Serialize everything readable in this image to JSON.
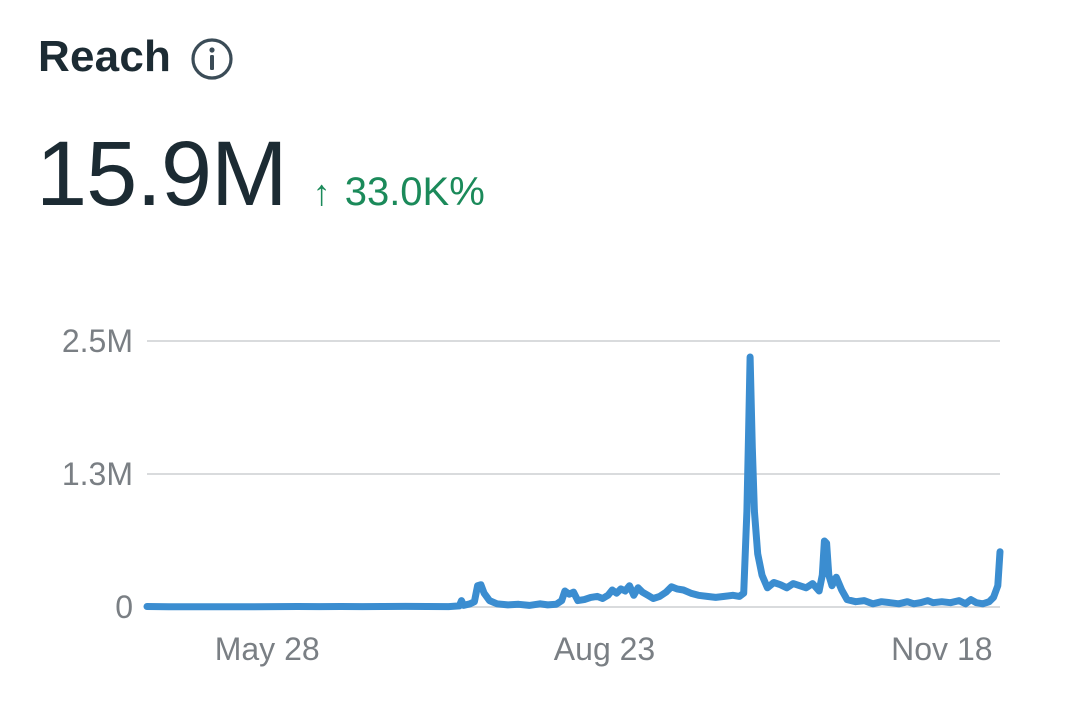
{
  "header": {
    "title": "Reach",
    "info_icon": "info-circle-icon"
  },
  "metric": {
    "value": "15.9M",
    "delta_arrow": "↑",
    "delta_text": "33.0K%",
    "delta_color": "#1b8a5a"
  },
  "colors": {
    "line": "#3b8dd0",
    "grid": "#d9dbdd",
    "text": "#1c2b33",
    "tick": "#7a7f84"
  },
  "chart_data": {
    "type": "line",
    "title": "",
    "xlabel": "",
    "ylabel": "",
    "ylim": [
      0,
      2500000
    ],
    "y_ticks": [
      {
        "label": "0",
        "value": 0
      },
      {
        "label": "1.3M",
        "value": 1250000
      },
      {
        "label": "2.5M",
        "value": 2500000
      }
    ],
    "x_ticks": [
      {
        "label": "May 28",
        "x": 31
      },
      {
        "label": "Aug 23",
        "x": 118
      },
      {
        "label": "Nov 18",
        "x": 205
      }
    ],
    "grid": true,
    "legend": "none",
    "series": [
      {
        "values": [
          [
            0,
            5000
          ],
          [
            20,
            3000
          ],
          [
            40,
            2000
          ],
          [
            60,
            3000
          ],
          [
            80,
            2000
          ],
          [
            100,
            3000
          ],
          [
            120,
            4000
          ],
          [
            140,
            5000
          ],
          [
            160,
            4000
          ],
          [
            180,
            5000
          ],
          [
            200,
            4000
          ],
          [
            220,
            5000
          ],
          [
            240,
            6000
          ],
          [
            260,
            5000
          ],
          [
            280,
            4000
          ],
          [
            290,
            10000
          ],
          [
            292,
            60000
          ],
          [
            294,
            15000
          ],
          [
            300,
            30000
          ],
          [
            304,
            50000
          ],
          [
            307,
            200000
          ],
          [
            310,
            210000
          ],
          [
            313,
            130000
          ],
          [
            318,
            60000
          ],
          [
            325,
            30000
          ],
          [
            335,
            20000
          ],
          [
            345,
            25000
          ],
          [
            355,
            15000
          ],
          [
            365,
            30000
          ],
          [
            372,
            20000
          ],
          [
            380,
            25000
          ],
          [
            385,
            60000
          ],
          [
            388,
            150000
          ],
          [
            392,
            120000
          ],
          [
            396,
            140000
          ],
          [
            400,
            60000
          ],
          [
            406,
            70000
          ],
          [
            412,
            90000
          ],
          [
            418,
            100000
          ],
          [
            423,
            80000
          ],
          [
            428,
            110000
          ],
          [
            432,
            160000
          ],
          [
            436,
            130000
          ],
          [
            440,
            170000
          ],
          [
            444,
            150000
          ],
          [
            448,
            200000
          ],
          [
            452,
            110000
          ],
          [
            456,
            180000
          ],
          [
            460,
            140000
          ],
          [
            465,
            110000
          ],
          [
            470,
            80000
          ],
          [
            476,
            100000
          ],
          [
            482,
            140000
          ],
          [
            487,
            190000
          ],
          [
            492,
            170000
          ],
          [
            498,
            160000
          ],
          [
            505,
            130000
          ],
          [
            512,
            110000
          ],
          [
            520,
            100000
          ],
          [
            528,
            90000
          ],
          [
            536,
            100000
          ],
          [
            544,
            110000
          ],
          [
            550,
            100000
          ],
          [
            554,
            130000
          ],
          [
            557,
            900000
          ],
          [
            558.5,
            1600000
          ],
          [
            560,
            2350000
          ],
          [
            562,
            1500000
          ],
          [
            564,
            900000
          ],
          [
            567,
            500000
          ],
          [
            571,
            300000
          ],
          [
            576,
            180000
          ],
          [
            582,
            230000
          ],
          [
            588,
            210000
          ],
          [
            594,
            180000
          ],
          [
            600,
            220000
          ],
          [
            606,
            200000
          ],
          [
            612,
            180000
          ],
          [
            618,
            220000
          ],
          [
            624,
            150000
          ],
          [
            627,
            300000
          ],
          [
            629,
            620000
          ],
          [
            631,
            600000
          ],
          [
            633,
            300000
          ],
          [
            636,
            200000
          ],
          [
            640,
            280000
          ],
          [
            645,
            160000
          ],
          [
            650,
            70000
          ],
          [
            658,
            50000
          ],
          [
            666,
            60000
          ],
          [
            674,
            30000
          ],
          [
            682,
            50000
          ],
          [
            690,
            40000
          ],
          [
            698,
            30000
          ],
          [
            706,
            50000
          ],
          [
            712,
            30000
          ],
          [
            718,
            40000
          ],
          [
            725,
            60000
          ],
          [
            730,
            40000
          ],
          [
            738,
            50000
          ],
          [
            746,
            40000
          ],
          [
            754,
            60000
          ],
          [
            760,
            30000
          ],
          [
            765,
            70000
          ],
          [
            770,
            40000
          ],
          [
            776,
            30000
          ],
          [
            782,
            50000
          ],
          [
            786,
            90000
          ],
          [
            790,
            200000
          ],
          [
            792,
            520000
          ]
        ]
      }
    ]
  }
}
